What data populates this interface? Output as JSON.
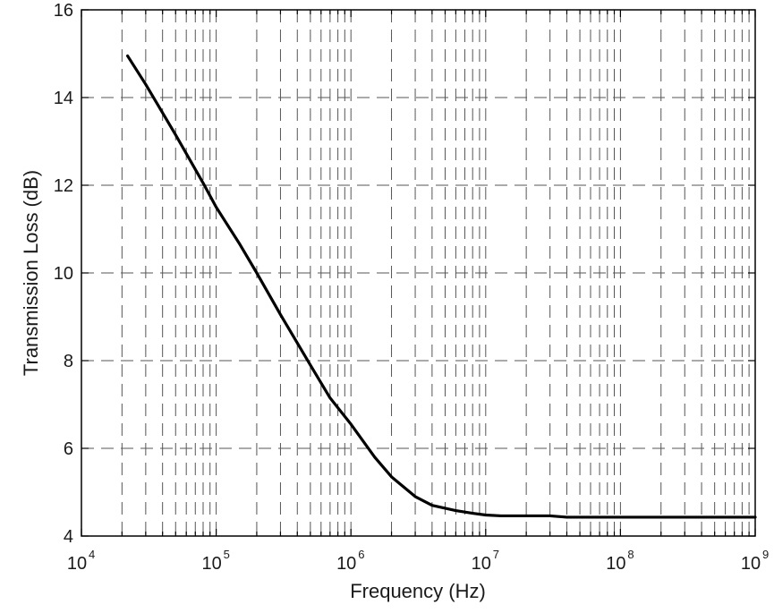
{
  "chart_data": {
    "type": "line",
    "title": "",
    "xlabel": "Frequency (Hz)",
    "ylabel": "Transmission Loss (dB)",
    "xscale": "log",
    "xlim": [
      10000,
      1000000000
    ],
    "ylim": [
      4,
      16
    ],
    "grid": true,
    "x_ticks": [
      {
        "base": "10",
        "exp": "4",
        "value": 10000
      },
      {
        "base": "10",
        "exp": "5",
        "value": 100000
      },
      {
        "base": "10",
        "exp": "6",
        "value": 1000000
      },
      {
        "base": "10",
        "exp": "7",
        "value": 10000000
      },
      {
        "base": "10",
        "exp": "8",
        "value": 100000000
      },
      {
        "base": "10",
        "exp": "9",
        "value": 1000000000
      }
    ],
    "y_ticks": [
      {
        "label": "4",
        "value": 4
      },
      {
        "label": "6",
        "value": 6
      },
      {
        "label": "8",
        "value": 8
      },
      {
        "label": "10",
        "value": 10
      },
      {
        "label": "12",
        "value": 12
      },
      {
        "label": "14",
        "value": 14
      },
      {
        "label": "16",
        "value": 16
      }
    ],
    "series": [
      {
        "name": "Transmission Loss",
        "color": "#000000",
        "x": [
          22000,
          30000,
          50000,
          80000,
          100000,
          150000,
          200000,
          300000,
          500000,
          700000,
          1000000,
          1500000,
          2000000,
          3000000,
          4000000,
          6000000,
          8000000,
          10000000,
          13000000,
          20000000,
          30000000,
          40000000,
          100000000,
          300000000,
          1000000000
        ],
        "y": [
          14.95,
          14.3,
          13.15,
          12.05,
          11.5,
          10.65,
          10.0,
          9.05,
          7.9,
          7.15,
          6.55,
          5.8,
          5.35,
          4.9,
          4.7,
          4.58,
          4.52,
          4.48,
          4.46,
          4.46,
          4.46,
          4.43,
          4.43,
          4.43,
          4.43
        ]
      }
    ]
  }
}
